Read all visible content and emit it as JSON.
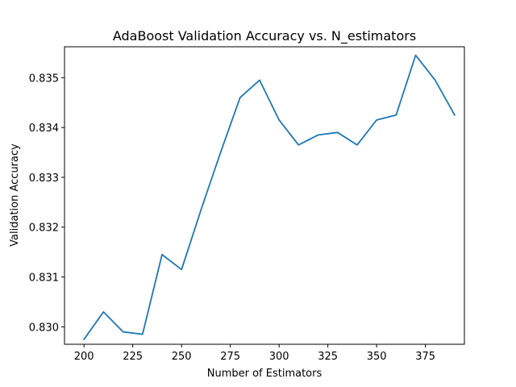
{
  "chart_data": {
    "type": "line",
    "title": "AdaBoost Validation Accuracy vs. N_estimators",
    "xlabel": "Number of Estimators",
    "ylabel": "Validation Accuracy",
    "xlim": [
      190,
      395
    ],
    "ylim": [
      0.82965,
      0.83562
    ],
    "xticks": [
      200,
      225,
      250,
      275,
      300,
      325,
      350,
      375
    ],
    "xtick_labels": [
      "200",
      "225",
      "250",
      "275",
      "300",
      "325",
      "350",
      "375"
    ],
    "yticks": [
      0.83,
      0.831,
      0.832,
      0.833,
      0.834,
      0.835
    ],
    "ytick_labels": [
      "0.830",
      "0.831",
      "0.832",
      "0.833",
      "0.834",
      "0.835"
    ],
    "grid": false,
    "legend": "none",
    "series": [
      {
        "color": "#1f77b4",
        "x": [
          200,
          210,
          220,
          230,
          240,
          250,
          260,
          270,
          280,
          290,
          300,
          310,
          320,
          330,
          340,
          350,
          360,
          370,
          380,
          390
        ],
        "y": [
          0.82975,
          0.8303,
          0.8299,
          0.82985,
          0.83145,
          0.83115,
          0.83235,
          0.8335,
          0.8346,
          0.83495,
          0.83415,
          0.83365,
          0.83385,
          0.8339,
          0.83365,
          0.83415,
          0.83425,
          0.83545,
          0.83495,
          0.83425
        ]
      }
    ]
  }
}
